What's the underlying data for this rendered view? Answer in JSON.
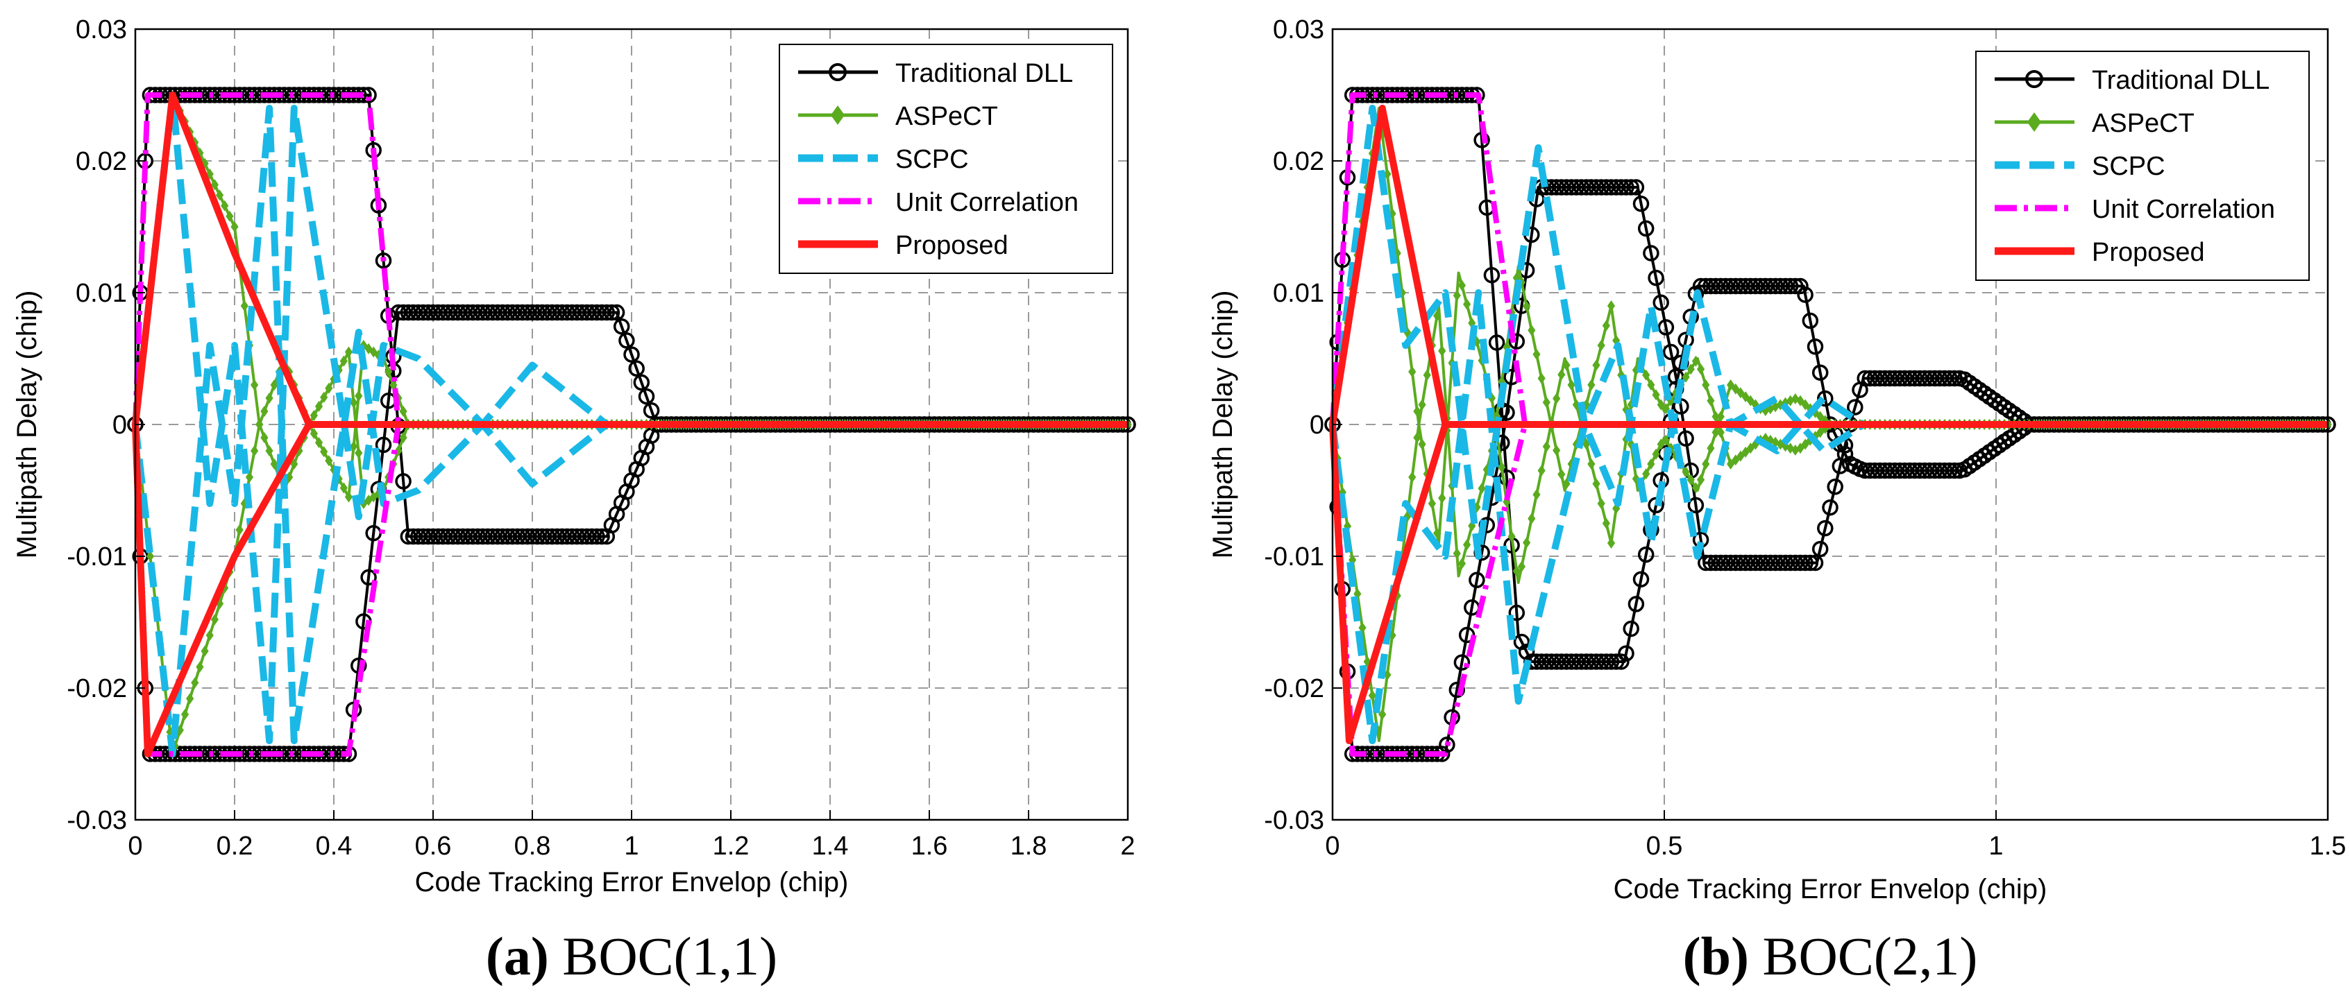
{
  "colors": {
    "traditional_dll": "#000000",
    "aspect": "#5aab1e",
    "scpc": "#1ab8e6",
    "unit_correlation": "#ff00ff",
    "proposed": "#ff1a1a",
    "grid": "#9a9a9a"
  },
  "legend_labels": [
    "Traditional DLL",
    "ASPeCT",
    "SCPC",
    "Unit Correlation",
    "Proposed"
  ],
  "captions": {
    "a": {
      "label": "(a)",
      "text": " BOC(1,1)"
    },
    "b": {
      "label": "(b)",
      "text": " BOC(2,1)"
    }
  },
  "chart_data": [
    {
      "type": "line",
      "id": "a",
      "title": "BOC(1,1)",
      "xlabel": "Code Tracking Error Envelop (chip)",
      "ylabel": "Multipath Delay (chip)",
      "xlim": [
        0,
        2
      ],
      "ylim": [
        -0.03,
        0.03
      ],
      "xticks": [
        0,
        0.2,
        0.4,
        0.6,
        0.8,
        1,
        1.2,
        1.4,
        1.6,
        1.8,
        2
      ],
      "xtick_labels": [
        "0",
        "0.2",
        "0.4",
        "0.6",
        "0.8",
        "1",
        "1.2",
        "1.4",
        "1.6",
        "1.8",
        "2"
      ],
      "yticks": [
        -0.03,
        -0.02,
        -0.01,
        0,
        0.01,
        0.02,
        0.03
      ],
      "ytick_labels": [
        "-0.03",
        "-0.02",
        "-0.01",
        "0",
        "0.01",
        "0.02",
        "0.03"
      ],
      "grid": true,
      "legend_position": "top-right",
      "series": [
        {
          "name": "Traditional DLL",
          "key": "traditional_dll",
          "marker": "circle",
          "marker_step": 0.01,
          "dash": "solid",
          "upper": [
            [
              0,
              0
            ],
            [
              0.025,
              0.025
            ],
            [
              0.47,
              0.025
            ],
            [
              0.55,
              -0.0085
            ],
            [
              0.95,
              -0.0085
            ],
            [
              1.05,
              0
            ],
            [
              2,
              0
            ]
          ],
          "lower": [
            [
              0,
              0
            ],
            [
              0.025,
              -0.025
            ],
            [
              0.43,
              -0.025
            ],
            [
              0.53,
              0.0085
            ],
            [
              0.97,
              0.0085
            ],
            [
              1.05,
              0
            ],
            [
              2,
              0
            ]
          ]
        },
        {
          "name": "ASPeCT",
          "key": "aspect",
          "marker": "diamond",
          "marker_step": 0.01,
          "dash": "solid",
          "upper": [
            [
              0,
              0
            ],
            [
              0.075,
              0.025
            ],
            [
              0.2,
              0.015
            ],
            [
              0.25,
              0
            ],
            [
              0.3,
              0.005
            ],
            [
              0.35,
              0
            ],
            [
              0.43,
              -0.0055
            ],
            [
              0.46,
              0.006
            ],
            [
              0.5,
              0.005
            ],
            [
              0.55,
              0
            ],
            [
              2,
              0
            ]
          ],
          "lower": [
            [
              0,
              0
            ],
            [
              0.075,
              -0.025
            ],
            [
              0.2,
              -0.01
            ],
            [
              0.25,
              0
            ],
            [
              0.3,
              -0.005
            ],
            [
              0.35,
              0
            ],
            [
              0.43,
              0.0055
            ],
            [
              0.46,
              -0.006
            ],
            [
              0.5,
              -0.005
            ],
            [
              0.55,
              0
            ],
            [
              2,
              0
            ]
          ]
        },
        {
          "name": "SCPC",
          "key": "scpc",
          "marker": "none",
          "dash": "dashed",
          "upper": [
            [
              0,
              0
            ],
            [
              0.075,
              0.025
            ],
            [
              0.15,
              -0.006
            ],
            [
              0.2,
              0.006
            ],
            [
              0.27,
              -0.024
            ],
            [
              0.32,
              0.024
            ],
            [
              0.45,
              -0.007
            ],
            [
              0.5,
              0.006
            ],
            [
              0.57,
              0.005
            ],
            [
              0.7,
              0
            ],
            [
              0.8,
              0.0045
            ],
            [
              0.95,
              0
            ],
            [
              2,
              0
            ]
          ],
          "lower": [
            [
              0,
              0
            ],
            [
              0.075,
              -0.025
            ],
            [
              0.15,
              0.006
            ],
            [
              0.2,
              -0.006
            ],
            [
              0.27,
              0.024
            ],
            [
              0.32,
              -0.024
            ],
            [
              0.45,
              0.007
            ],
            [
              0.5,
              -0.006
            ],
            [
              0.57,
              -0.005
            ],
            [
              0.7,
              0
            ],
            [
              0.8,
              -0.0045
            ],
            [
              0.95,
              0
            ],
            [
              2,
              0
            ]
          ]
        },
        {
          "name": "Unit Correlation",
          "key": "unit_correlation",
          "marker": "none",
          "dash": "dashdot",
          "upper": [
            [
              0,
              0
            ],
            [
              0.025,
              0.025
            ],
            [
              0.47,
              0.025
            ],
            [
              0.53,
              0
            ],
            [
              2,
              0
            ]
          ],
          "lower": [
            [
              0,
              0
            ],
            [
              0.025,
              -0.025
            ],
            [
              0.43,
              -0.025
            ],
            [
              0.53,
              0
            ],
            [
              2,
              0
            ]
          ]
        },
        {
          "name": "Proposed",
          "key": "proposed",
          "marker": "none",
          "dash": "solid",
          "upper": [
            [
              0,
              0
            ],
            [
              0.075,
              0.025
            ],
            [
              0.2,
              0.013
            ],
            [
              0.35,
              0
            ],
            [
              2,
              0
            ]
          ],
          "lower": [
            [
              0,
              0
            ],
            [
              0.025,
              -0.025
            ],
            [
              0.2,
              -0.01
            ],
            [
              0.35,
              0
            ],
            [
              2,
              0
            ]
          ]
        }
      ]
    },
    {
      "type": "line",
      "id": "b",
      "title": "BOC(2,1)",
      "xlabel": "Code Tracking Error Envelop (chip)",
      "ylabel": "Multipath Delay (chip)",
      "xlim": [
        0,
        1.5
      ],
      "ylim": [
        -0.03,
        0.03
      ],
      "xticks": [
        0,
        0.5,
        1,
        1.5
      ],
      "xtick_labels": [
        "0",
        "0.5",
        "1",
        "1.5"
      ],
      "yticks": [
        -0.03,
        -0.02,
        -0.01,
        0,
        0.01,
        0.02,
        0.03
      ],
      "ytick_labels": [
        "-0.03",
        "-0.02",
        "-0.01",
        "0",
        "0.01",
        "0.02",
        "0.03"
      ],
      "grid": true,
      "legend_position": "top-right",
      "series": [
        {
          "name": "Traditional DLL",
          "key": "traditional_dll",
          "marker": "circle",
          "marker_step": 0.0075,
          "dash": "solid",
          "upper": [
            [
              0,
              0
            ],
            [
              0.03,
              0.025
            ],
            [
              0.22,
              0.025
            ],
            [
              0.28,
              -0.016
            ],
            [
              0.3,
              -0.018
            ],
            [
              0.44,
              -0.018
            ],
            [
              0.5,
              -0.003
            ],
            [
              0.52,
              0.0035
            ],
            [
              0.55,
              0.0105
            ],
            [
              0.71,
              0.0105
            ],
            [
              0.75,
              0
            ],
            [
              0.78,
              -0.003
            ],
            [
              0.8,
              -0.0035
            ],
            [
              0.95,
              -0.0035
            ],
            [
              1.05,
              0
            ],
            [
              1.5,
              0
            ]
          ],
          "lower": [
            [
              0,
              0
            ],
            [
              0.03,
              -0.025
            ],
            [
              0.17,
              -0.025
            ],
            [
              0.26,
              0
            ],
            [
              0.31,
              0.018
            ],
            [
              0.46,
              0.018
            ],
            [
              0.52,
              0.003
            ],
            [
              0.54,
              -0.0035
            ],
            [
              0.56,
              -0.0105
            ],
            [
              0.73,
              -0.0105
            ],
            [
              0.78,
              0
            ],
            [
              0.8,
              0.0035
            ],
            [
              0.95,
              0.0035
            ],
            [
              1.05,
              0
            ],
            [
              1.5,
              0
            ]
          ]
        },
        {
          "name": "ASPeCT",
          "key": "aspect",
          "marker": "diamond",
          "marker_step": 0.0075,
          "dash": "solid",
          "upper": [
            [
              0,
              0
            ],
            [
              0.07,
              0.024
            ],
            [
              0.13,
              0
            ],
            [
              0.16,
              0.009
            ],
            [
              0.19,
              -0.0115
            ],
            [
              0.24,
              -0.002
            ],
            [
              0.28,
              0.012
            ],
            [
              0.35,
              -0.005
            ],
            [
              0.42,
              0.009
            ],
            [
              0.46,
              -0.005
            ],
            [
              0.5,
              -0.001
            ],
            [
              0.55,
              -0.005
            ],
            [
              0.6,
              0.003
            ],
            [
              0.65,
              0.001
            ],
            [
              0.7,
              0.002
            ],
            [
              0.75,
              0
            ],
            [
              1,
              0
            ],
            [
              1.5,
              0
            ]
          ],
          "lower": [
            [
              0,
              0
            ],
            [
              0.07,
              -0.024
            ],
            [
              0.13,
              0
            ],
            [
              0.16,
              -0.009
            ],
            [
              0.19,
              0.0115
            ],
            [
              0.24,
              0.002
            ],
            [
              0.28,
              -0.012
            ],
            [
              0.35,
              0.005
            ],
            [
              0.42,
              -0.009
            ],
            [
              0.46,
              0.005
            ],
            [
              0.5,
              0.001
            ],
            [
              0.55,
              0.005
            ],
            [
              0.6,
              -0.003
            ],
            [
              0.65,
              -0.001
            ],
            [
              0.7,
              -0.002
            ],
            [
              0.75,
              0
            ],
            [
              1,
              0
            ],
            [
              1.5,
              0
            ]
          ]
        },
        {
          "name": "SCPC",
          "key": "scpc",
          "marker": "none",
          "dash": "dashed",
          "upper": [
            [
              0,
              0
            ],
            [
              0.06,
              0.024
            ],
            [
              0.11,
              0.006
            ],
            [
              0.17,
              0.01
            ],
            [
              0.22,
              -0.01
            ],
            [
              0.31,
              0.021
            ],
            [
              0.38,
              0
            ],
            [
              0.43,
              0.006
            ],
            [
              0.48,
              -0.009
            ],
            [
              0.55,
              0.01
            ],
            [
              0.6,
              0
            ],
            [
              0.67,
              -0.002
            ],
            [
              0.74,
              0.002
            ],
            [
              0.8,
              0
            ],
            [
              1,
              0
            ],
            [
              1.5,
              0
            ]
          ],
          "lower": [
            [
              0,
              0
            ],
            [
              0.06,
              -0.024
            ],
            [
              0.11,
              -0.006
            ],
            [
              0.17,
              -0.01
            ],
            [
              0.22,
              0.01
            ],
            [
              0.28,
              -0.021
            ],
            [
              0.38,
              0
            ],
            [
              0.43,
              -0.006
            ],
            [
              0.48,
              0.009
            ],
            [
              0.55,
              -0.01
            ],
            [
              0.6,
              0
            ],
            [
              0.67,
              0.002
            ],
            [
              0.74,
              -0.002
            ],
            [
              0.8,
              0
            ],
            [
              1,
              0
            ],
            [
              1.5,
              0
            ]
          ]
        },
        {
          "name": "Unit Correlation",
          "key": "unit_correlation",
          "marker": "none",
          "dash": "dashdot",
          "upper": [
            [
              0,
              0
            ],
            [
              0.03,
              0.025
            ],
            [
              0.22,
              0.025
            ],
            [
              0.29,
              0
            ],
            [
              1.5,
              0
            ]
          ],
          "lower": [
            [
              0,
              0
            ],
            [
              0.03,
              -0.025
            ],
            [
              0.17,
              -0.025
            ],
            [
              0.29,
              0
            ],
            [
              1.5,
              0
            ]
          ]
        },
        {
          "name": "Proposed",
          "key": "proposed",
          "marker": "none",
          "dash": "solid",
          "upper": [
            [
              0,
              0
            ],
            [
              0.075,
              0.024
            ],
            [
              0.17,
              0
            ],
            [
              1.5,
              0
            ]
          ],
          "lower": [
            [
              0,
              0
            ],
            [
              0.025,
              -0.024
            ],
            [
              0.17,
              0
            ],
            [
              1.5,
              0
            ]
          ]
        }
      ]
    }
  ]
}
